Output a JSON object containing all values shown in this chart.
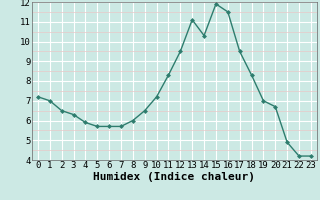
{
  "x": [
    0,
    1,
    2,
    3,
    4,
    5,
    6,
    7,
    8,
    9,
    10,
    11,
    12,
    13,
    14,
    15,
    16,
    17,
    18,
    19,
    20,
    21,
    22,
    23
  ],
  "y": [
    7.2,
    7.0,
    6.5,
    6.3,
    5.9,
    5.7,
    5.7,
    5.7,
    6.0,
    6.5,
    7.2,
    8.3,
    9.5,
    11.1,
    10.3,
    11.9,
    11.5,
    9.5,
    8.3,
    7.0,
    6.7,
    4.9,
    4.2,
    4.2
  ],
  "xlabel": "Humidex (Indice chaleur)",
  "ylim": [
    4,
    12
  ],
  "yticks": [
    4,
    5,
    6,
    7,
    8,
    9,
    10,
    11,
    12
  ],
  "xticks": [
    0,
    1,
    2,
    3,
    4,
    5,
    6,
    7,
    8,
    9,
    10,
    11,
    12,
    13,
    14,
    15,
    16,
    17,
    18,
    19,
    20,
    21,
    22,
    23
  ],
  "line_color": "#2e7d6e",
  "marker_color": "#2e7d6e",
  "bg_color": "#cce9e4",
  "grid_color": "#ffffff",
  "grid_minor_color": "#e8c8c8",
  "xlabel_fontsize": 8,
  "tick_fontsize": 6.5
}
